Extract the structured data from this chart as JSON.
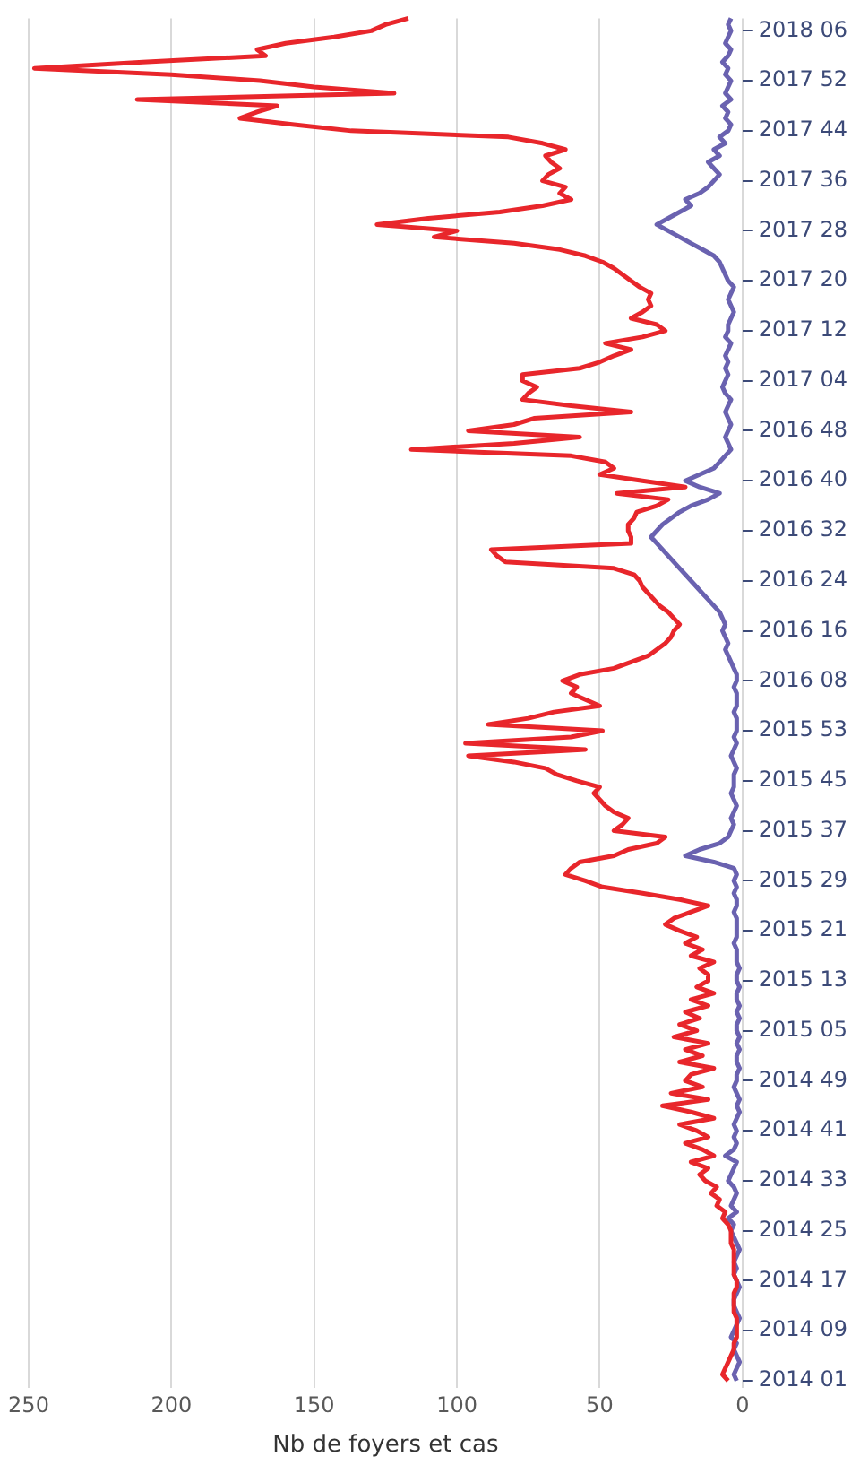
{
  "chart_data": {
    "type": "line",
    "orientation": "horizontal",
    "xlabel": "Nb de foyers et cas",
    "xlim": [
      250,
      0
    ],
    "xticks": [
      250,
      200,
      150,
      100,
      50,
      0
    ],
    "grid": "x",
    "legend": false,
    "marker": "none",
    "categories": [
      null,
      null,
      "2018 06",
      null,
      null,
      null,
      null,
      null,
      null,
      null,
      "2017 52",
      null,
      null,
      null,
      null,
      null,
      null,
      null,
      "2017 44",
      null,
      null,
      null,
      null,
      null,
      null,
      null,
      "2017 36",
      null,
      null,
      null,
      null,
      null,
      null,
      null,
      "2017 28",
      null,
      null,
      null,
      null,
      null,
      null,
      null,
      "2017 20",
      null,
      null,
      null,
      null,
      null,
      null,
      null,
      "2017 12",
      null,
      null,
      null,
      null,
      null,
      null,
      null,
      "2017 04",
      null,
      null,
      null,
      null,
      null,
      null,
      null,
      "2016 48",
      null,
      null,
      null,
      null,
      null,
      null,
      null,
      "2016 40",
      null,
      null,
      null,
      null,
      null,
      null,
      null,
      "2016 32",
      null,
      null,
      null,
      null,
      null,
      null,
      null,
      "2016 24",
      null,
      null,
      null,
      null,
      null,
      null,
      null,
      "2016 16",
      null,
      null,
      null,
      null,
      null,
      null,
      null,
      "2016 08",
      null,
      null,
      null,
      null,
      null,
      null,
      null,
      "2015 53",
      null,
      null,
      null,
      null,
      null,
      null,
      null,
      "2015 45",
      null,
      null,
      null,
      null,
      null,
      null,
      null,
      "2015 37",
      null,
      null,
      null,
      null,
      null,
      null,
      null,
      "2015 29",
      null,
      null,
      null,
      null,
      null,
      null,
      null,
      "2015 21",
      null,
      null,
      null,
      null,
      null,
      null,
      null,
      "2015 13",
      null,
      null,
      null,
      null,
      null,
      null,
      null,
      "2015 05",
      null,
      null,
      null,
      null,
      null,
      null,
      null,
      "2014 49",
      null,
      null,
      null,
      null,
      null,
      null,
      null,
      "2014 41",
      null,
      null,
      null,
      null,
      null,
      null,
      null,
      "2014 33",
      null,
      null,
      null,
      null,
      null,
      null,
      null,
      "2014 25",
      null,
      null,
      null,
      null,
      null,
      null,
      null,
      "2014 17",
      null,
      null,
      null,
      null,
      null,
      null,
      null,
      "2014 09",
      null,
      null,
      null,
      null,
      null,
      null,
      null,
      "2014 01"
    ],
    "series": [
      {
        "color": "#e8262b",
        "values": [
          117,
          125,
          130,
          143,
          160,
          170,
          167,
          210,
          248,
          200,
          169,
          150,
          122,
          212,
          163,
          170,
          176,
          157,
          137,
          82,
          70,
          62,
          69,
          67,
          64,
          68,
          70,
          62,
          64,
          60,
          70,
          85,
          110,
          128,
          100,
          108,
          80,
          64,
          55,
          49,
          45,
          42,
          39,
          36,
          32,
          33,
          32,
          35,
          39,
          30,
          27,
          35,
          48,
          39,
          45,
          50,
          57,
          77,
          77,
          72,
          75,
          77,
          60,
          39,
          73,
          80,
          96,
          57,
          80,
          116,
          60,
          48,
          45,
          50,
          35,
          20,
          44,
          26,
          30,
          37,
          38,
          40,
          40,
          39,
          39,
          88,
          86,
          83,
          45,
          38,
          36,
          35,
          33,
          31,
          29,
          26,
          24,
          22,
          24,
          25,
          27,
          30,
          33,
          39,
          45,
          57,
          63,
          58,
          60,
          55,
          50,
          66,
          75,
          89,
          49,
          60,
          97,
          55,
          96,
          80,
          69,
          65,
          58,
          50,
          52,
          50,
          48,
          45,
          40,
          42,
          45,
          27,
          30,
          40,
          45,
          57,
          60,
          62,
          55,
          49,
          35,
          22,
          12,
          18,
          24,
          27,
          22,
          16,
          20,
          14,
          18,
          10,
          15,
          12,
          12,
          16,
          10,
          18,
          12,
          20,
          15,
          22,
          16,
          24,
          12,
          20,
          14,
          22,
          10,
          18,
          20,
          14,
          25,
          12,
          28,
          18,
          10,
          22,
          16,
          12,
          20,
          14,
          10,
          18,
          12,
          15,
          13,
          9,
          11,
          8,
          9,
          6,
          7,
          5,
          4,
          4,
          4,
          3,
          3,
          3,
          3,
          3,
          2,
          2,
          3,
          3,
          3,
          3,
          2,
          2,
          2,
          2,
          3,
          3,
          4,
          5,
          6,
          7,
          5
        ]
      },
      {
        "color": "#6a62b0",
        "values": [
          4,
          5,
          4,
          5,
          6,
          4,
          5,
          7,
          5,
          6,
          4,
          5,
          6,
          4,
          7,
          5,
          6,
          4,
          5,
          8,
          6,
          10,
          8,
          12,
          10,
          8,
          10,
          12,
          15,
          20,
          18,
          22,
          26,
          30,
          26,
          22,
          18,
          14,
          10,
          8,
          7,
          6,
          5,
          3,
          4,
          5,
          4,
          3,
          4,
          5,
          5,
          6,
          4,
          5,
          6,
          5,
          6,
          5,
          6,
          7,
          6,
          4,
          5,
          6,
          5,
          4,
          5,
          6,
          5,
          4,
          6,
          8,
          10,
          15,
          20,
          15,
          8,
          12,
          18,
          22,
          25,
          28,
          30,
          32,
          30,
          28,
          26,
          24,
          22,
          20,
          18,
          16,
          14,
          12,
          10,
          8,
          7,
          6,
          7,
          6,
          5,
          6,
          5,
          4,
          3,
          2,
          2,
          3,
          2,
          2,
          2,
          3,
          2,
          2,
          2,
          3,
          2,
          3,
          4,
          3,
          2,
          3,
          3,
          3,
          4,
          3,
          2,
          3,
          4,
          3,
          4,
          5,
          8,
          15,
          20,
          10,
          3,
          2,
          3,
          2,
          3,
          2,
          2,
          3,
          2,
          2,
          2,
          2,
          3,
          2,
          2,
          2,
          1,
          2,
          2,
          1,
          2,
          2,
          1,
          2,
          1,
          2,
          2,
          1,
          2,
          1,
          2,
          2,
          1,
          2,
          2,
          3,
          2,
          1,
          2,
          1,
          2,
          3,
          2,
          3,
          2,
          3,
          6,
          2,
          3,
          4,
          5,
          3,
          2,
          3,
          4,
          2,
          5,
          3,
          4,
          3,
          2,
          1,
          2,
          3,
          2,
          3,
          2,
          1,
          2,
          3,
          3,
          2,
          1,
          2,
          3,
          4,
          2,
          3,
          2,
          1,
          2,
          3,
          2
        ]
      }
    ]
  }
}
